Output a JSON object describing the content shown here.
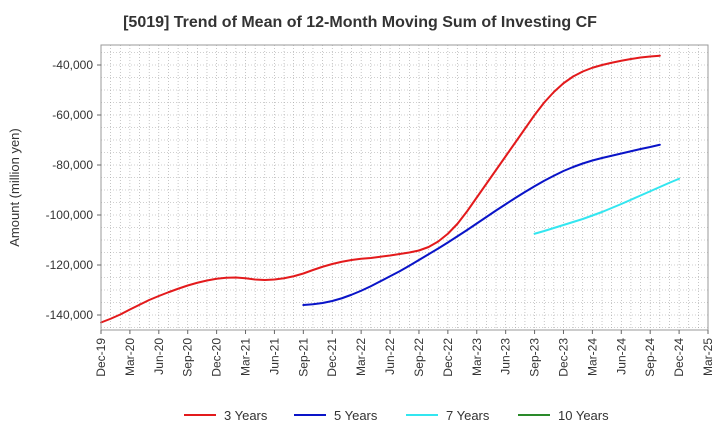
{
  "chart_data": {
    "type": "line",
    "title": "[5019]  Trend of Mean of 12-Month Moving Sum of Investing CF",
    "xlabel": "",
    "ylabel": "Amount (million yen)",
    "ylim": [
      -146000,
      -32000
    ],
    "yticks": [
      -40000,
      -60000,
      -80000,
      -100000,
      -120000,
      -140000
    ],
    "ytick_labels": [
      "-40,000",
      "-60,000",
      "-80,000",
      "-100,000",
      "-120,000",
      "-140,000"
    ],
    "x_start": "Dec-19",
    "x_months": 63,
    "x_tick_labels": [
      "Dec-19",
      "Mar-20",
      "Jun-20",
      "Sep-20",
      "Dec-20",
      "Mar-21",
      "Jun-21",
      "Sep-21",
      "Dec-21",
      "Mar-22",
      "Jun-22",
      "Sep-22",
      "Dec-22",
      "Mar-23",
      "Jun-23",
      "Sep-23",
      "Dec-23",
      "Mar-24",
      "Jun-24",
      "Sep-24",
      "Dec-24",
      "Mar-25"
    ],
    "grid": true,
    "legend_position": "bottom",
    "series": [
      {
        "name": "3 Years",
        "color": "#e31a1c",
        "start_month": 0,
        "values": [
          -143000,
          -141500,
          -139800,
          -137800,
          -135900,
          -134000,
          -132400,
          -130900,
          -129500,
          -128200,
          -127100,
          -126200,
          -125500,
          -125100,
          -125000,
          -125300,
          -125800,
          -126000,
          -125800,
          -125300,
          -124500,
          -123400,
          -122000,
          -120700,
          -119600,
          -118700,
          -118000,
          -117500,
          -117200,
          -116700,
          -116200,
          -115600,
          -115000,
          -114200,
          -112800,
          -110600,
          -107500,
          -103500,
          -98500,
          -93000,
          -87500,
          -82000,
          -76500,
          -71000,
          -65500,
          -60000,
          -55000,
          -50800,
          -47300,
          -44600,
          -42600,
          -41100,
          -40000,
          -39100,
          -38300,
          -37600,
          -37000,
          -36600,
          -36300
        ]
      },
      {
        "name": "5 Years",
        "color": "#0a14c8",
        "start_month": 21,
        "values": [
          -136000,
          -135700,
          -135200,
          -134400,
          -133300,
          -131900,
          -130300,
          -128500,
          -126500,
          -124500,
          -122500,
          -120300,
          -118000,
          -115700,
          -113400,
          -111000,
          -108500,
          -106000,
          -103400,
          -100800,
          -98200,
          -95700,
          -93200,
          -90800,
          -88500,
          -86300,
          -84300,
          -82400,
          -80800,
          -79400,
          -78200,
          -77200,
          -76300,
          -75400,
          -74500,
          -73600,
          -72800,
          -71900
        ]
      },
      {
        "name": "7 Years",
        "color": "#33e6f0",
        "start_month": 45,
        "values": [
          -107500,
          -106400,
          -105200,
          -104000,
          -102800,
          -101600,
          -100200,
          -98800,
          -97200,
          -95600,
          -93900,
          -92200,
          -90500,
          -88800,
          -87100,
          -85500
        ]
      },
      {
        "name": "10 Years",
        "color": "#2a8a2a",
        "start_month": 0,
        "values": []
      }
    ]
  }
}
